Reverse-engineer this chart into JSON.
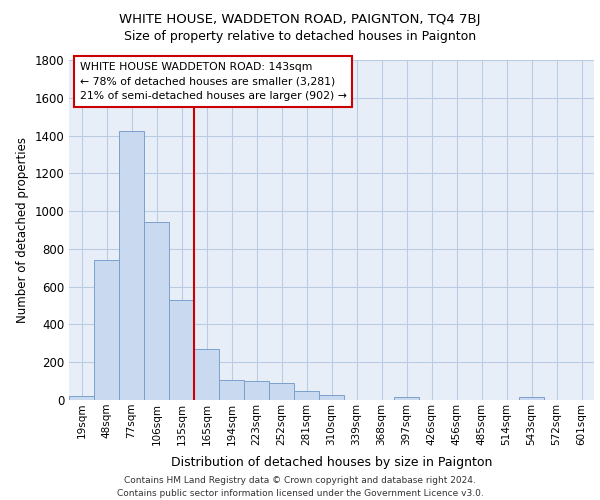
{
  "title1": "WHITE HOUSE, WADDETON ROAD, PAIGNTON, TQ4 7BJ",
  "title2": "Size of property relative to detached houses in Paignton",
  "xlabel": "Distribution of detached houses by size in Paignton",
  "ylabel": "Number of detached properties",
  "categories": [
    "19sqm",
    "48sqm",
    "77sqm",
    "106sqm",
    "135sqm",
    "165sqm",
    "194sqm",
    "223sqm",
    "252sqm",
    "281sqm",
    "310sqm",
    "339sqm",
    "368sqm",
    "397sqm",
    "426sqm",
    "456sqm",
    "485sqm",
    "514sqm",
    "543sqm",
    "572sqm",
    "601sqm"
  ],
  "values": [
    20,
    740,
    1425,
    940,
    530,
    270,
    105,
    100,
    90,
    50,
    25,
    0,
    0,
    17,
    0,
    0,
    0,
    0,
    15,
    0,
    0
  ],
  "bar_color": "#c9d9ef",
  "bar_edge_color": "#7aa0cc",
  "vline_x": 5,
  "vline_color": "#cc0000",
  "annotation_line1": "WHITE HOUSE WADDETON ROAD: 143sqm",
  "annotation_line2": "← 78% of detached houses are smaller (3,281)",
  "annotation_line3": "21% of semi-detached houses are larger (902) →",
  "annotation_box_color": "white",
  "annotation_box_edge": "#cc0000",
  "ylim": [
    0,
    1800
  ],
  "yticks": [
    0,
    200,
    400,
    600,
    800,
    1000,
    1200,
    1400,
    1600,
    1800
  ],
  "grid_color": "#b8cce4",
  "bg_color": "#e8eef8",
  "footnote": "Contains HM Land Registry data © Crown copyright and database right 2024.\nContains public sector information licensed under the Government Licence v3.0."
}
